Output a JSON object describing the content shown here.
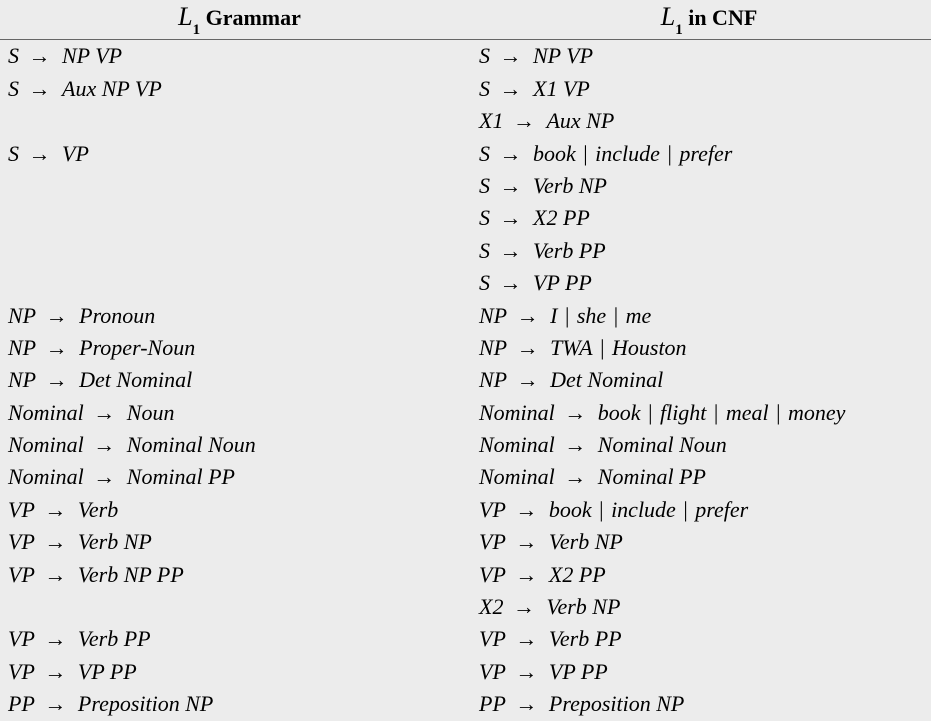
{
  "header": {
    "left": {
      "script": "L",
      "sub": "1",
      "tail": " Grammar"
    },
    "right": {
      "script": "L",
      "sub": "1",
      "tail": " in CNF"
    }
  },
  "rows": [
    {
      "l": {
        "lhs": "S",
        "rhs": "NP VP"
      },
      "r": {
        "lhs": "S",
        "rhs": "NP VP"
      }
    },
    {
      "l": {
        "lhs": "S",
        "rhs": "Aux NP VP"
      },
      "r": {
        "lhs": "S",
        "rhs": "X1 VP"
      }
    },
    {
      "l": null,
      "r": {
        "lhs": "X1",
        "rhs": "Aux NP"
      }
    },
    {
      "l": {
        "lhs": "S",
        "rhs": "VP"
      },
      "r": {
        "lhs": "S",
        "rhs_alts": [
          "book",
          "include",
          "prefer"
        ]
      }
    },
    {
      "l": null,
      "r": {
        "lhs": "S",
        "rhs": "Verb NP"
      }
    },
    {
      "l": null,
      "r": {
        "lhs": "S",
        "rhs": "X2 PP"
      }
    },
    {
      "l": null,
      "r": {
        "lhs": "S",
        "rhs": "Verb PP"
      }
    },
    {
      "l": null,
      "r": {
        "lhs": "S",
        "rhs": "VP PP"
      }
    },
    {
      "l": {
        "lhs": "NP",
        "rhs": "Pronoun"
      },
      "r": {
        "lhs": "NP",
        "rhs_alts": [
          "I",
          "she",
          "me"
        ]
      }
    },
    {
      "l": {
        "lhs": "NP",
        "rhs": "Proper-Noun"
      },
      "r": {
        "lhs": "NP",
        "rhs_alts": [
          "TWA",
          "Houston"
        ]
      }
    },
    {
      "l": {
        "lhs": "NP",
        "rhs": "Det Nominal"
      },
      "r": {
        "lhs": "NP",
        "rhs": "Det Nominal"
      }
    },
    {
      "l": {
        "lhs": "Nominal",
        "rhs": "Noun"
      },
      "r": {
        "lhs": "Nominal",
        "rhs_alts": [
          "book",
          "flight",
          "meal",
          "money"
        ]
      }
    },
    {
      "l": {
        "lhs": "Nominal",
        "rhs": "Nominal Noun"
      },
      "r": {
        "lhs": "Nominal",
        "rhs": "Nominal Noun"
      }
    },
    {
      "l": {
        "lhs": "Nominal",
        "rhs": "Nominal PP"
      },
      "r": {
        "lhs": "Nominal",
        "rhs": "Nominal PP"
      }
    },
    {
      "l": {
        "lhs": "VP",
        "rhs": "Verb"
      },
      "r": {
        "lhs": "VP",
        "rhs_alts": [
          "book",
          "include",
          "prefer"
        ]
      }
    },
    {
      "l": {
        "lhs": "VP",
        "rhs": "Verb NP"
      },
      "r": {
        "lhs": "VP",
        "rhs": "Verb NP"
      }
    },
    {
      "l": {
        "lhs": "VP",
        "rhs": "Verb NP PP"
      },
      "r": {
        "lhs": "VP",
        "rhs": "X2 PP"
      }
    },
    {
      "l": null,
      "r": {
        "lhs": "X2",
        "rhs": "Verb NP"
      }
    },
    {
      "l": {
        "lhs": "VP",
        "rhs": "Verb PP"
      },
      "r": {
        "lhs": "VP",
        "rhs": "Verb PP"
      }
    },
    {
      "l": {
        "lhs": "VP",
        "rhs": "VP PP"
      },
      "r": {
        "lhs": "VP",
        "rhs": "VP PP"
      }
    },
    {
      "l": {
        "lhs": "PP",
        "rhs": "Preposition NP"
      },
      "r": {
        "lhs": "PP",
        "rhs": "Preposition NP"
      }
    }
  ],
  "glyphs": {
    "arrow": "→",
    "pipe": "|"
  }
}
